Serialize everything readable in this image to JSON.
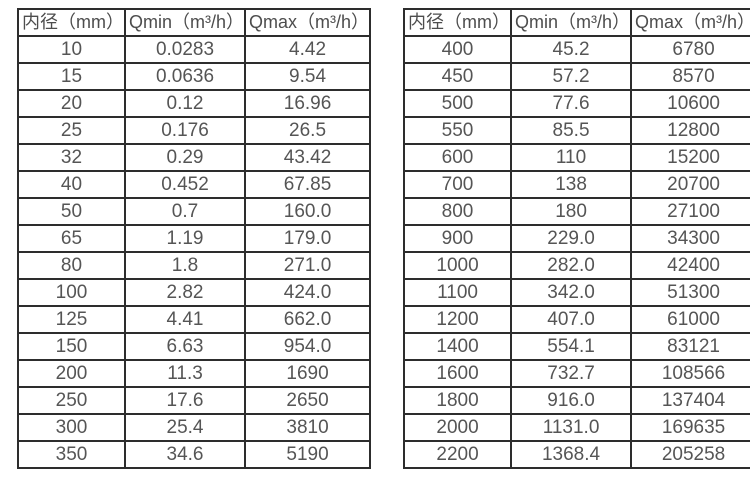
{
  "colors": {
    "table_border": "#2d2d2d",
    "header_text": "#4d4d4d",
    "cell_text": "#555555",
    "background": "#ffffff"
  },
  "tables": [
    {
      "name": "flow-table-small-diameters",
      "headers": [
        "内径（mm）",
        "Qmin（m³/h）",
        "Qmax（m³/h）"
      ],
      "rows": [
        [
          "10",
          "0.0283",
          "4.42"
        ],
        [
          "15",
          "0.0636",
          "9.54"
        ],
        [
          "20",
          "0.12",
          "16.96"
        ],
        [
          "25",
          "0.176",
          "26.5"
        ],
        [
          "32",
          "0.29",
          "43.42"
        ],
        [
          "40",
          "0.452",
          "67.85"
        ],
        [
          "50",
          "0.7",
          "160.0"
        ],
        [
          "65",
          "1.19",
          "179.0"
        ],
        [
          "80",
          "1.8",
          "271.0"
        ],
        [
          "100",
          "2.82",
          "424.0"
        ],
        [
          "125",
          "4.41",
          "662.0"
        ],
        [
          "150",
          "6.63",
          "954.0"
        ],
        [
          "200",
          "11.3",
          "1690"
        ],
        [
          "250",
          "17.6",
          "2650"
        ],
        [
          "300",
          "25.4",
          "3810"
        ],
        [
          "350",
          "34.6",
          "5190"
        ]
      ]
    },
    {
      "name": "flow-table-large-diameters",
      "headers": [
        "内径（mm）",
        "Qmin（m³/h）",
        "Qmax（m³/h）"
      ],
      "rows": [
        [
          "400",
          "45.2",
          "6780"
        ],
        [
          "450",
          "57.2",
          "8570"
        ],
        [
          "500",
          "77.6",
          "10600"
        ],
        [
          "550",
          "85.5",
          "12800"
        ],
        [
          "600",
          "110",
          "15200"
        ],
        [
          "700",
          "138",
          "20700"
        ],
        [
          "800",
          "180",
          "27100"
        ],
        [
          "900",
          "229.0",
          "34300"
        ],
        [
          "1000",
          "282.0",
          "42400"
        ],
        [
          "1100",
          "342.0",
          "51300"
        ],
        [
          "1200",
          "407.0",
          "61000"
        ],
        [
          "1400",
          "554.1",
          "83121"
        ],
        [
          "1600",
          "732.7",
          "108566"
        ],
        [
          "1800",
          "916.0",
          "137404"
        ],
        [
          "2000",
          "1131.0",
          "169635"
        ],
        [
          "2200",
          "1368.4",
          "205258"
        ]
      ]
    }
  ]
}
